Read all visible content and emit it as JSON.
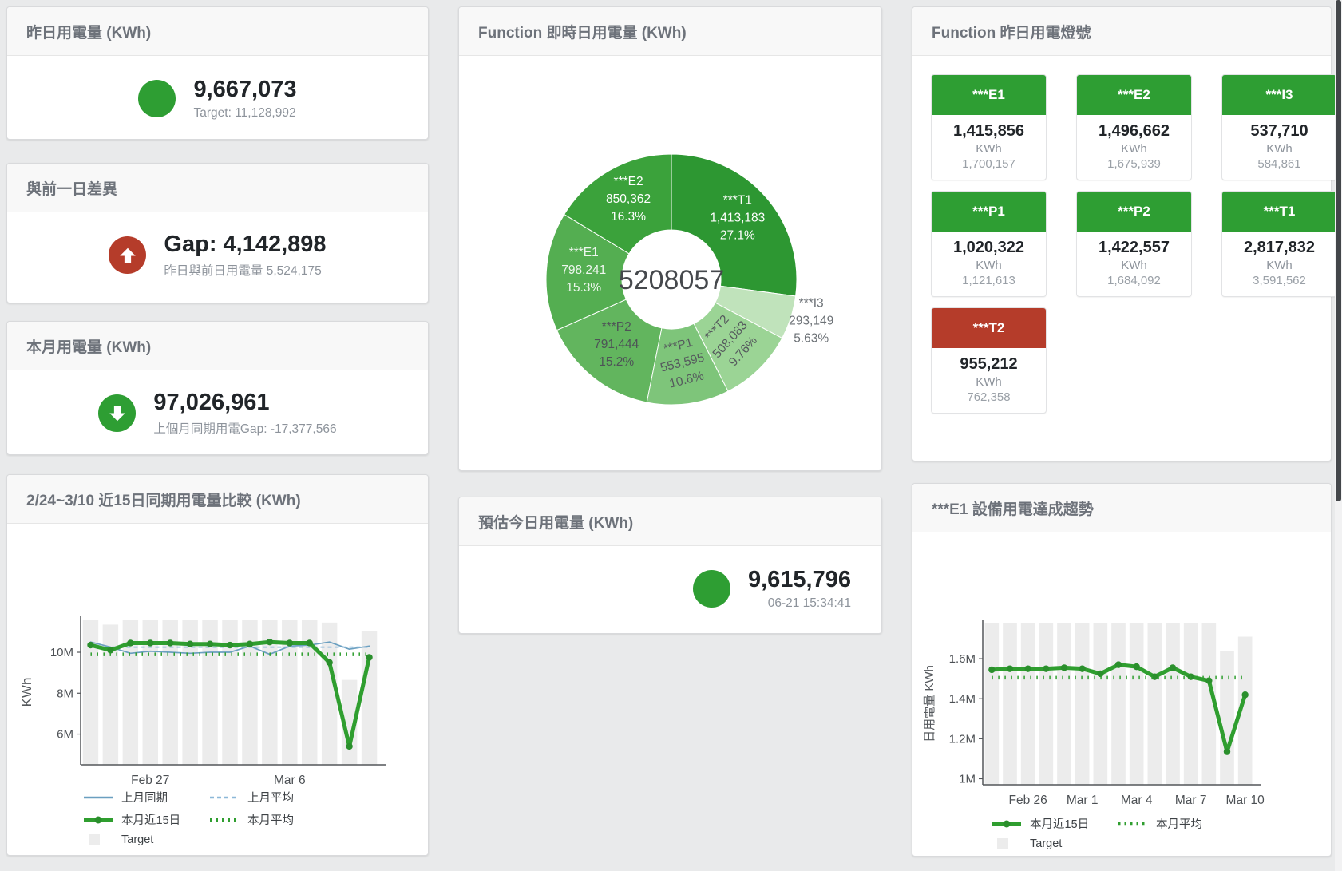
{
  "colors": {
    "green": "#2e9e33",
    "red": "#b53c2a",
    "bar_grey": "#ececec",
    "green_line": "#2f9e2f",
    "blue_line": "#6a9fc0",
    "blue_dash": "#8cb8d8",
    "panel_bg": "#ffffff",
    "page_bg": "#e9eaeb"
  },
  "stat_cards": {
    "yesterday": {
      "title": "昨日用電量 (KWh)",
      "value": "9,667,073",
      "sub": "Target: 11,128,992",
      "indicator": "circle",
      "indicator_color": "#2e9e33"
    },
    "diff": {
      "title": "與前一日差異",
      "value": "Gap: 4,142,898",
      "sub": "昨日與前日用電量 5,524,175",
      "indicator": "arrow-up",
      "indicator_color": "#b53c2a"
    },
    "month": {
      "title": "本月用電量 (KWh)",
      "value": "97,026,961",
      "sub": "上個月同期用電Gap: -17,377,566",
      "indicator": "arrow-down",
      "indicator_color": "#2e9e33"
    },
    "estimate": {
      "title": "預估今日用電量 (KWh)",
      "value": "9,615,796",
      "sub": "06-21 15:34:41",
      "indicator": "circle",
      "indicator_color": "#2e9e33"
    }
  },
  "lights_panel": {
    "title": "Function 昨日用電燈號",
    "tiles": [
      {
        "label": "***E1",
        "value": "1,415,856",
        "unit": "KWh",
        "target": "1,700,157",
        "status": "green"
      },
      {
        "label": "***E2",
        "value": "1,496,662",
        "unit": "KWh",
        "target": "1,675,939",
        "status": "green"
      },
      {
        "label": "***I3",
        "value": "537,710",
        "unit": "KWh",
        "target": "584,861",
        "status": "green"
      },
      {
        "label": "***P1",
        "value": "1,020,322",
        "unit": "KWh",
        "target": "1,121,613",
        "status": "green"
      },
      {
        "label": "***P2",
        "value": "1,422,557",
        "unit": "KWh",
        "target": "1,684,092",
        "status": "green"
      },
      {
        "label": "***T1",
        "value": "2,817,832",
        "unit": "KWh",
        "target": "3,591,562",
        "status": "green"
      },
      {
        "label": "***T2",
        "value": "955,212",
        "unit": "KWh",
        "target": "762,358",
        "status": "red"
      }
    ]
  },
  "chart_data": [
    {
      "type": "pie",
      "title": "Function 即時日用電量 (KWh)",
      "center_label": "5208057",
      "unit": "KWh",
      "slices": [
        {
          "name": "***T1",
          "value": 1413183,
          "value_label": "1,413,183",
          "pct": 27.1,
          "pct_label": "27.1%",
          "color": "#2d9732",
          "label_color": "#ffffff"
        },
        {
          "name": "***I3",
          "value": 293149,
          "value_label": "293,149",
          "pct": 5.63,
          "pct_label": "5.63%",
          "color": "#c0e3bb",
          "label_color": "#6b7075",
          "label_pos": "outside"
        },
        {
          "name": "***T2",
          "value": 508083,
          "value_label": "508,083",
          "pct": 9.76,
          "pct_label": "9.76%",
          "color": "#9bd495",
          "label_color": "#55595d",
          "rotate": -48
        },
        {
          "name": "***P1",
          "value": 553595,
          "value_label": "553,595",
          "pct": 10.6,
          "pct_label": "10.6%",
          "color": "#7ec57a",
          "label_color": "#55595d",
          "rotate": -14
        },
        {
          "name": "***P2",
          "value": 791444,
          "value_label": "791,444",
          "pct": 15.2,
          "pct_label": "15.2%",
          "color": "#62b55e",
          "label_color": "#4e5357"
        },
        {
          "name": "***E1",
          "value": 798241,
          "value_label": "798,241",
          "pct": 15.3,
          "pct_label": "15.3%",
          "color": "#54ae51",
          "label_color": "#eef6ee"
        },
        {
          "name": "***E2",
          "value": 850362,
          "value_label": "850,362",
          "pct": 16.3,
          "pct_label": "16.3%",
          "color": "#3ba23b",
          "label_color": "#ffffff"
        }
      ]
    },
    {
      "type": "line+bar",
      "title": "2/24~3/10 近15日同期用電量比較 (KWh)",
      "ylabel": "KWh",
      "unit": "millions KWh",
      "ylim": [
        4.5,
        11.6
      ],
      "yticks": [
        {
          "v": 6,
          "label": "6M"
        },
        {
          "v": 8,
          "label": "8M"
        },
        {
          "v": 10,
          "label": "10M"
        }
      ],
      "x_count": 15,
      "xticks": [
        {
          "i": 3,
          "label": "Feb 27"
        },
        {
          "i": 10,
          "label": "Mar 6"
        }
      ],
      "series": [
        {
          "name": "Target",
          "kind": "bar",
          "color": "#ececec",
          "values": [
            11.6,
            11.35,
            11.6,
            11.6,
            11.6,
            11.6,
            11.6,
            11.6,
            11.6,
            11.6,
            11.6,
            11.6,
            11.45,
            8.65,
            11.05
          ]
        },
        {
          "name": "上月同期",
          "kind": "line",
          "color": "#6a9fc0",
          "width": 1.7,
          "values": [
            10.5,
            10.25,
            9.95,
            10.05,
            10.0,
            9.95,
            10.0,
            10.0,
            10.3,
            9.9,
            10.3,
            10.35,
            10.5,
            10.15,
            10.3
          ]
        },
        {
          "name": "上月平均",
          "kind": "line",
          "color": "#8cb8d8",
          "width": 1.7,
          "dash": "5 4",
          "const": 10.25
        },
        {
          "name": "本月近15日",
          "kind": "line",
          "color": "#2f9e2f",
          "width": 5,
          "markers": true,
          "values": [
            10.35,
            10.1,
            10.45,
            10.45,
            10.45,
            10.4,
            10.4,
            10.35,
            10.4,
            10.5,
            10.45,
            10.45,
            9.5,
            5.4,
            9.75
          ]
        },
        {
          "name": "本月平均",
          "kind": "line",
          "color": "#2f9e2f",
          "width": 4.5,
          "dash": "1.5 6.5",
          "const": 9.9
        }
      ],
      "legend": [
        {
          "swatch": "line",
          "color": "#6a9fc0",
          "label": "上月同期"
        },
        {
          "swatch": "dash",
          "color": "#8cb8d8",
          "label": "上月平均"
        },
        {
          "swatch": "thickline",
          "color": "#2f9e2f",
          "label": "本月近15日"
        },
        {
          "swatch": "dots",
          "color": "#2f9e2f",
          "label": "本月平均"
        },
        {
          "swatch": "box",
          "color": "#ececec",
          "label": "Target"
        }
      ]
    },
    {
      "type": "line+bar",
      "title": "***E1 設備用電達成趨勢",
      "ylabel": "日用電量 KWh",
      "unit": "millions KWh",
      "ylim": [
        0.97,
        1.78
      ],
      "yticks": [
        {
          "v": 1,
          "label": "1M"
        },
        {
          "v": 1.2,
          "label": "1.2M"
        },
        {
          "v": 1.4,
          "label": "1.4M"
        },
        {
          "v": 1.6,
          "label": "1.6M"
        }
      ],
      "x_count": 15,
      "xticks": [
        {
          "i": 2,
          "label": "Feb 26"
        },
        {
          "i": 5,
          "label": "Mar 1"
        },
        {
          "i": 8,
          "label": "Mar 4"
        },
        {
          "i": 11,
          "label": "Mar 7"
        },
        {
          "i": 14,
          "label": "Mar 10"
        }
      ],
      "series": [
        {
          "name": "Target",
          "kind": "bar",
          "color": "#ececec",
          "values": [
            1.78,
            1.78,
            1.78,
            1.78,
            1.78,
            1.78,
            1.78,
            1.78,
            1.78,
            1.78,
            1.78,
            1.78,
            1.78,
            1.64,
            1.71
          ]
        },
        {
          "name": "本月近15日",
          "kind": "line",
          "color": "#2f9e2f",
          "width": 5,
          "markers": true,
          "values": [
            1.545,
            1.55,
            1.55,
            1.55,
            1.555,
            1.55,
            1.525,
            1.57,
            1.56,
            1.51,
            1.555,
            1.51,
            1.49,
            1.135,
            1.42
          ]
        },
        {
          "name": "本月平均",
          "kind": "line",
          "color": "#2f9e2f",
          "width": 4.5,
          "dash": "1.5 6.5",
          "const": 1.505
        }
      ],
      "legend": [
        {
          "swatch": "thickline",
          "color": "#2f9e2f",
          "label": "本月近15日"
        },
        {
          "swatch": "dots",
          "color": "#2f9e2f",
          "label": "本月平均"
        },
        {
          "swatch": "box",
          "color": "#ececec",
          "label": "Target"
        }
      ]
    }
  ]
}
